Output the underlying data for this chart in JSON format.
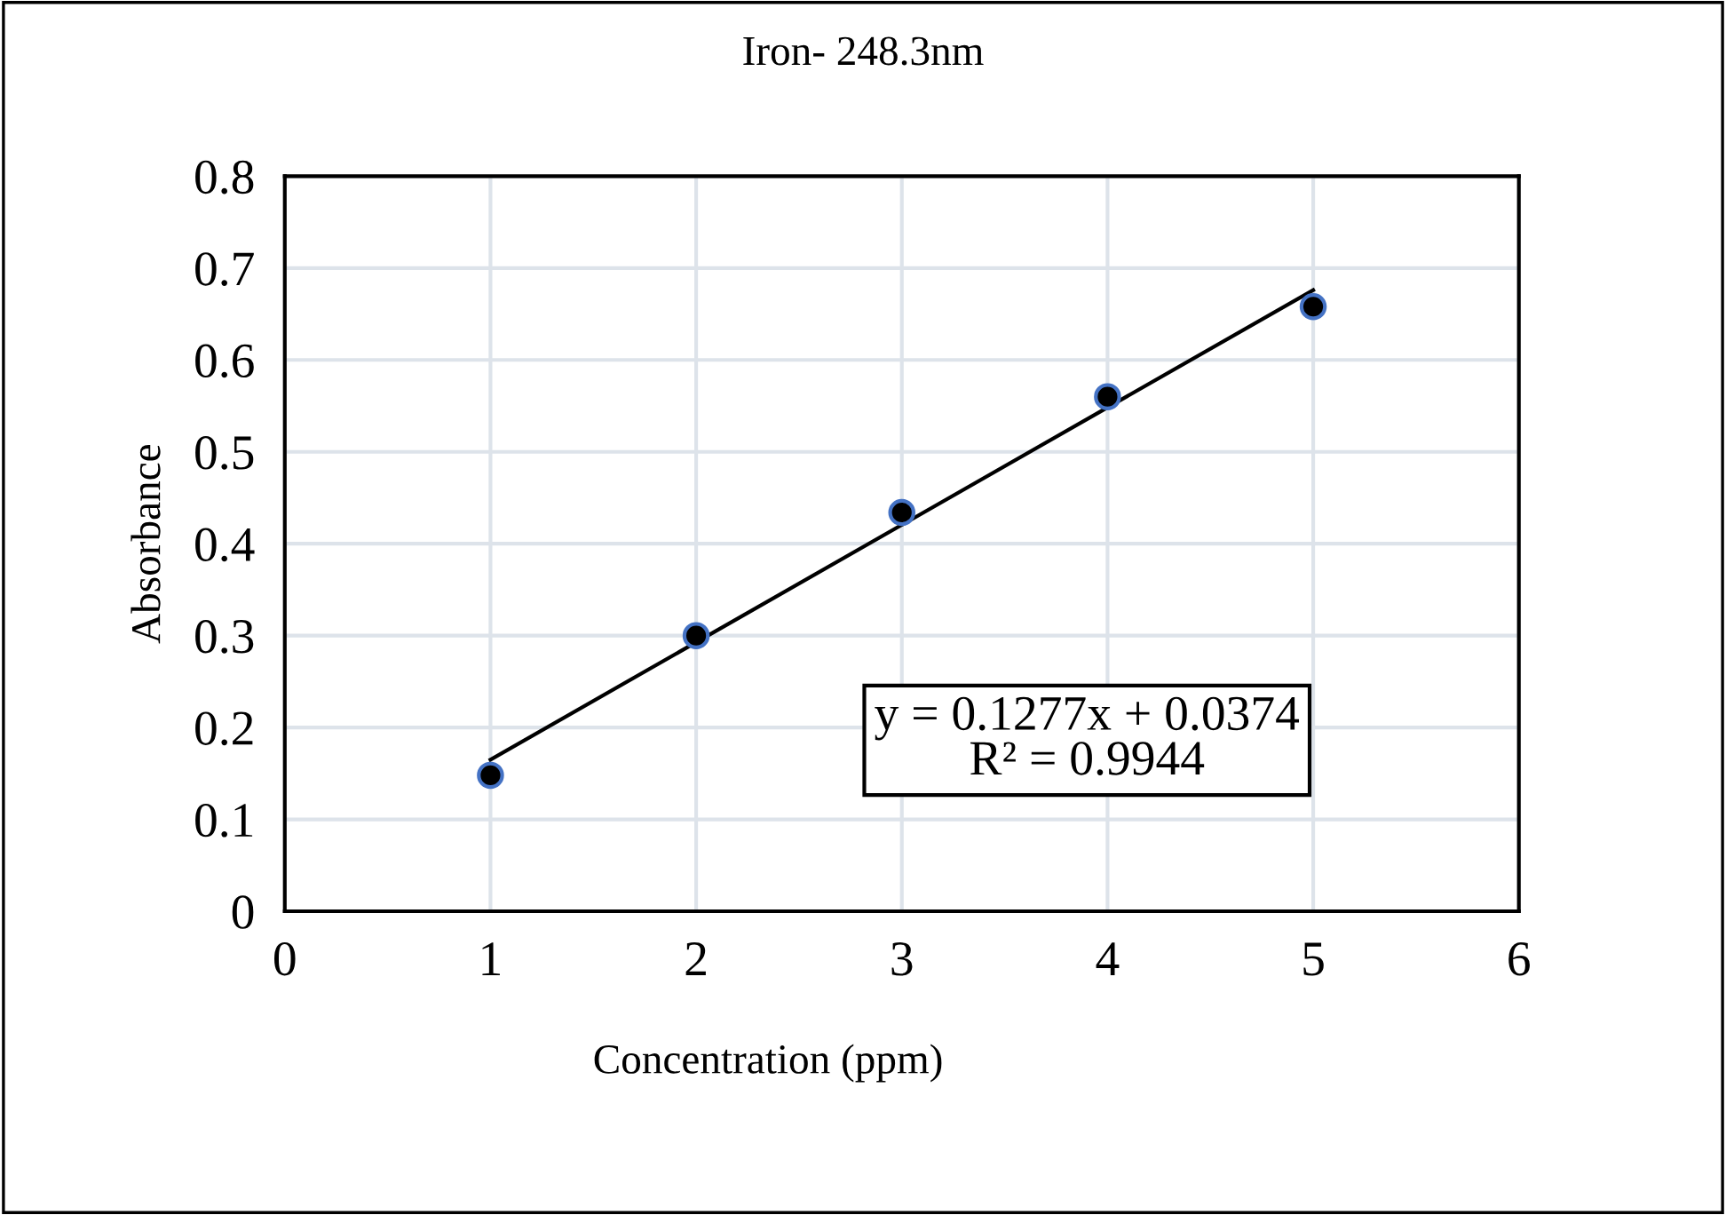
{
  "chart_data": {
    "type": "scatter",
    "title": "Iron- 248.3nm",
    "xlabel": "Concentration (ppm)",
    "ylabel": "Absorbance",
    "x": [
      1,
      2,
      3,
      4,
      5
    ],
    "series": [
      {
        "color": "#000000",
        "marker": "circle",
        "values": [
          0.148,
          0.3,
          0.434,
          0.56,
          0.658
        ]
      },
      {
        "type": "line",
        "color": "#000000",
        "x": [
          1,
          5
        ],
        "values": [
          0.165,
          0.676
        ]
      }
    ],
    "annotations": [
      "y = 0.1277x + 0.0374\nR² = 0.9944"
    ],
    "xlim": [
      0,
      6
    ],
    "xticks": [
      0,
      1,
      2,
      3,
      4,
      5,
      6
    ],
    "ylim": [
      0,
      0.8
    ],
    "yticks": [
      0,
      0.1,
      0.2,
      0.3,
      0.4,
      0.5,
      0.6,
      0.7,
      0.8
    ],
    "grid": true
  }
}
